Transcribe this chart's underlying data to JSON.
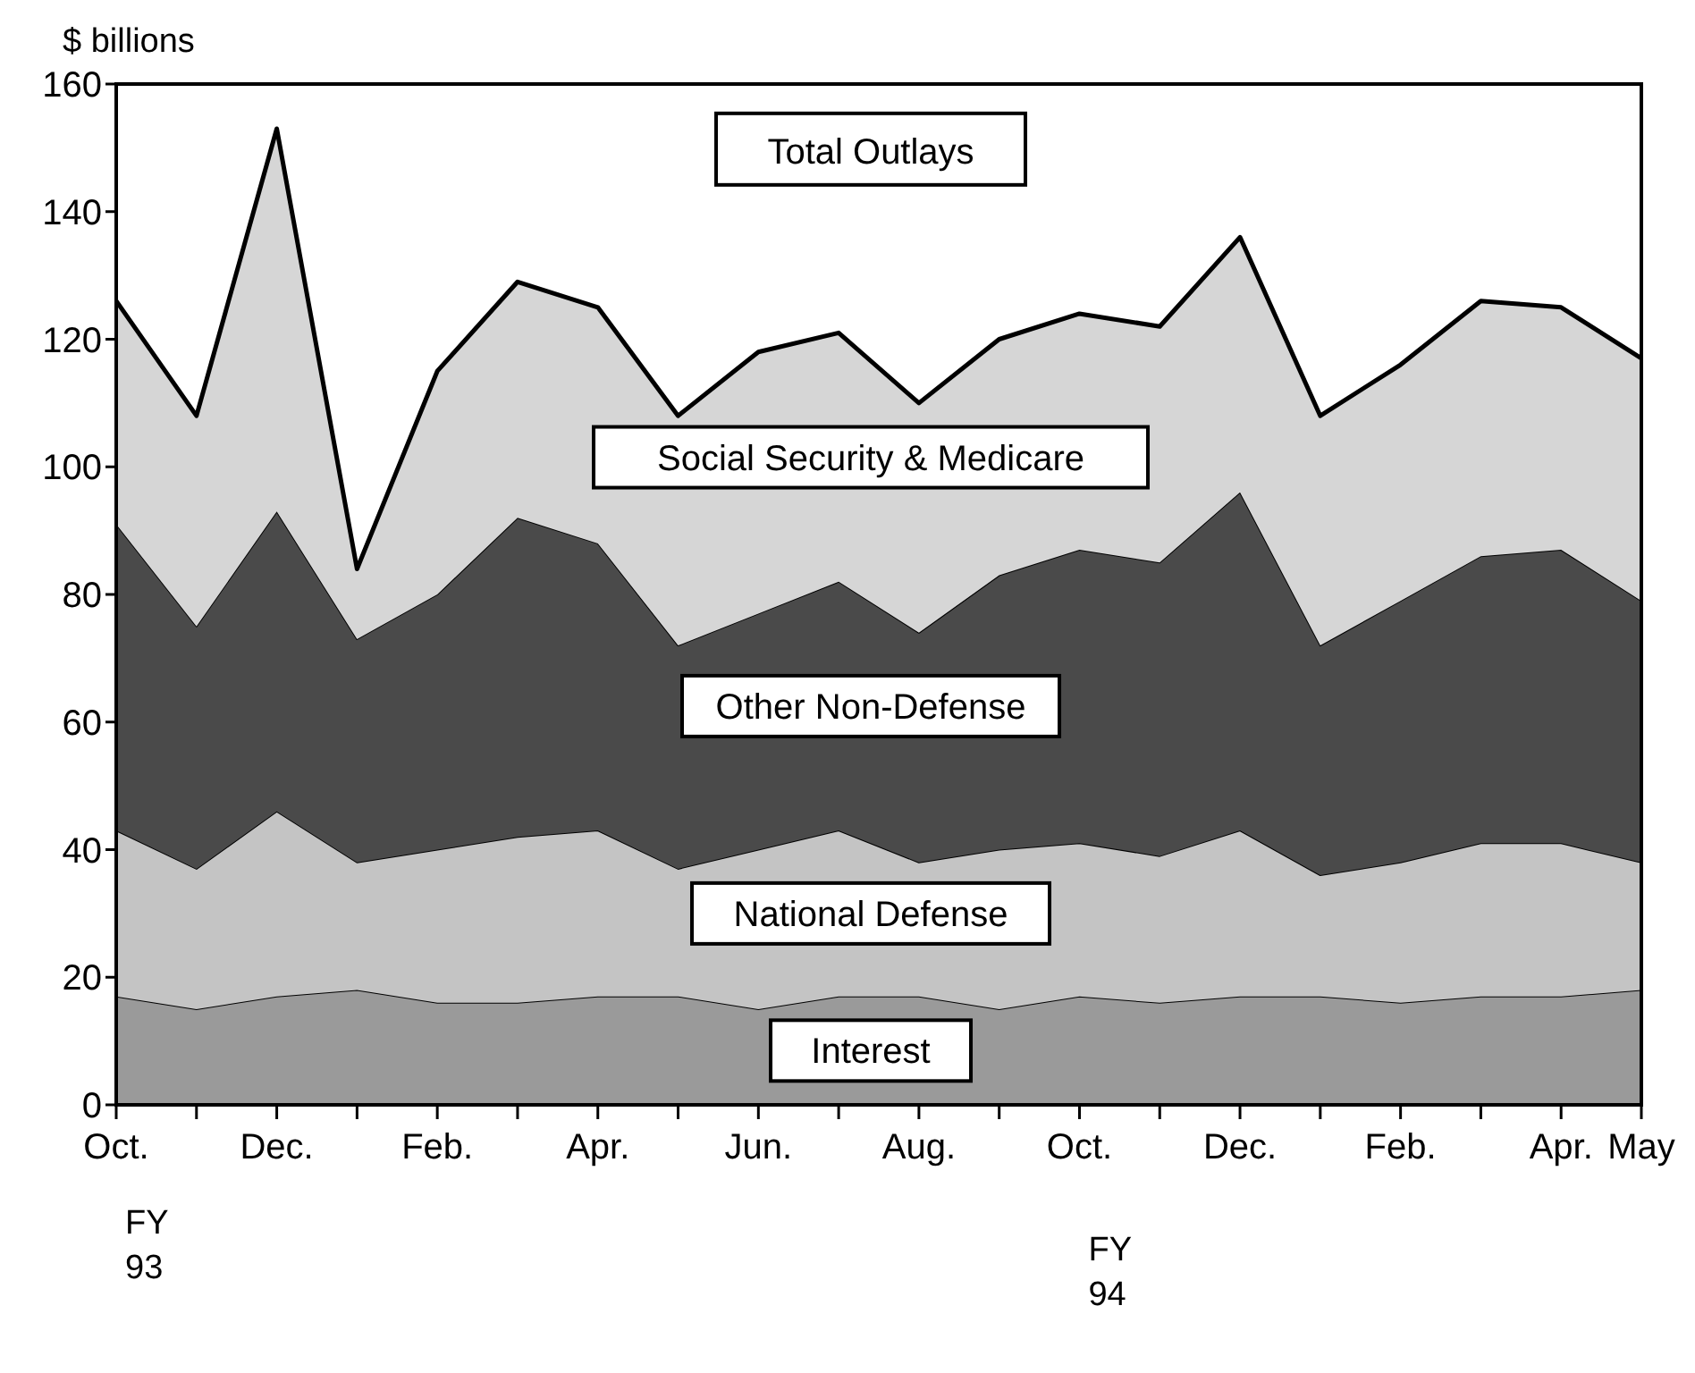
{
  "chart_data": {
    "type": "area",
    "stacked": true,
    "ylabel": "$ billions",
    "categories": [
      "Oct.",
      null,
      "Dec.",
      null,
      "Feb.",
      null,
      "Apr.",
      null,
      "Jun.",
      null,
      "Aug.",
      null,
      "Oct.",
      null,
      "Dec.",
      null,
      "Feb.",
      null,
      "Apr.",
      "May"
    ],
    "series": [
      {
        "name": "Interest",
        "color": "#9a9a9a",
        "values": [
          17,
          15,
          17,
          18,
          16,
          16,
          17,
          17,
          15,
          17,
          17,
          15,
          17,
          16,
          17,
          17,
          16,
          17,
          17,
          18
        ]
      },
      {
        "name": "National Defense",
        "color": "#c4c4c4",
        "values": [
          26,
          22,
          29,
          20,
          24,
          26,
          26,
          20,
          25,
          26,
          21,
          25,
          24,
          23,
          26,
          19,
          22,
          24,
          24,
          20
        ]
      },
      {
        "name": "Other Non-Defense",
        "color": "#4a4a4a",
        "values": [
          48,
          38,
          47,
          35,
          40,
          50,
          45,
          35,
          37,
          39,
          36,
          43,
          46,
          46,
          53,
          36,
          41,
          45,
          46,
          41
        ]
      },
      {
        "name": "Social Security & Medicare",
        "color": "#d6d6d6",
        "values": [
          35,
          33,
          60,
          11,
          35,
          37,
          37,
          36,
          41,
          39,
          36,
          37,
          37,
          37,
          40,
          36,
          37,
          40,
          38,
          38
        ]
      }
    ],
    "ylim": [
      0,
      160
    ],
    "yticks": [
      0,
      20,
      40,
      60,
      80,
      100,
      120,
      140,
      160
    ],
    "grid": false,
    "annotations": [
      "Total Outlays",
      "FY 93",
      "FY 94"
    ]
  }
}
